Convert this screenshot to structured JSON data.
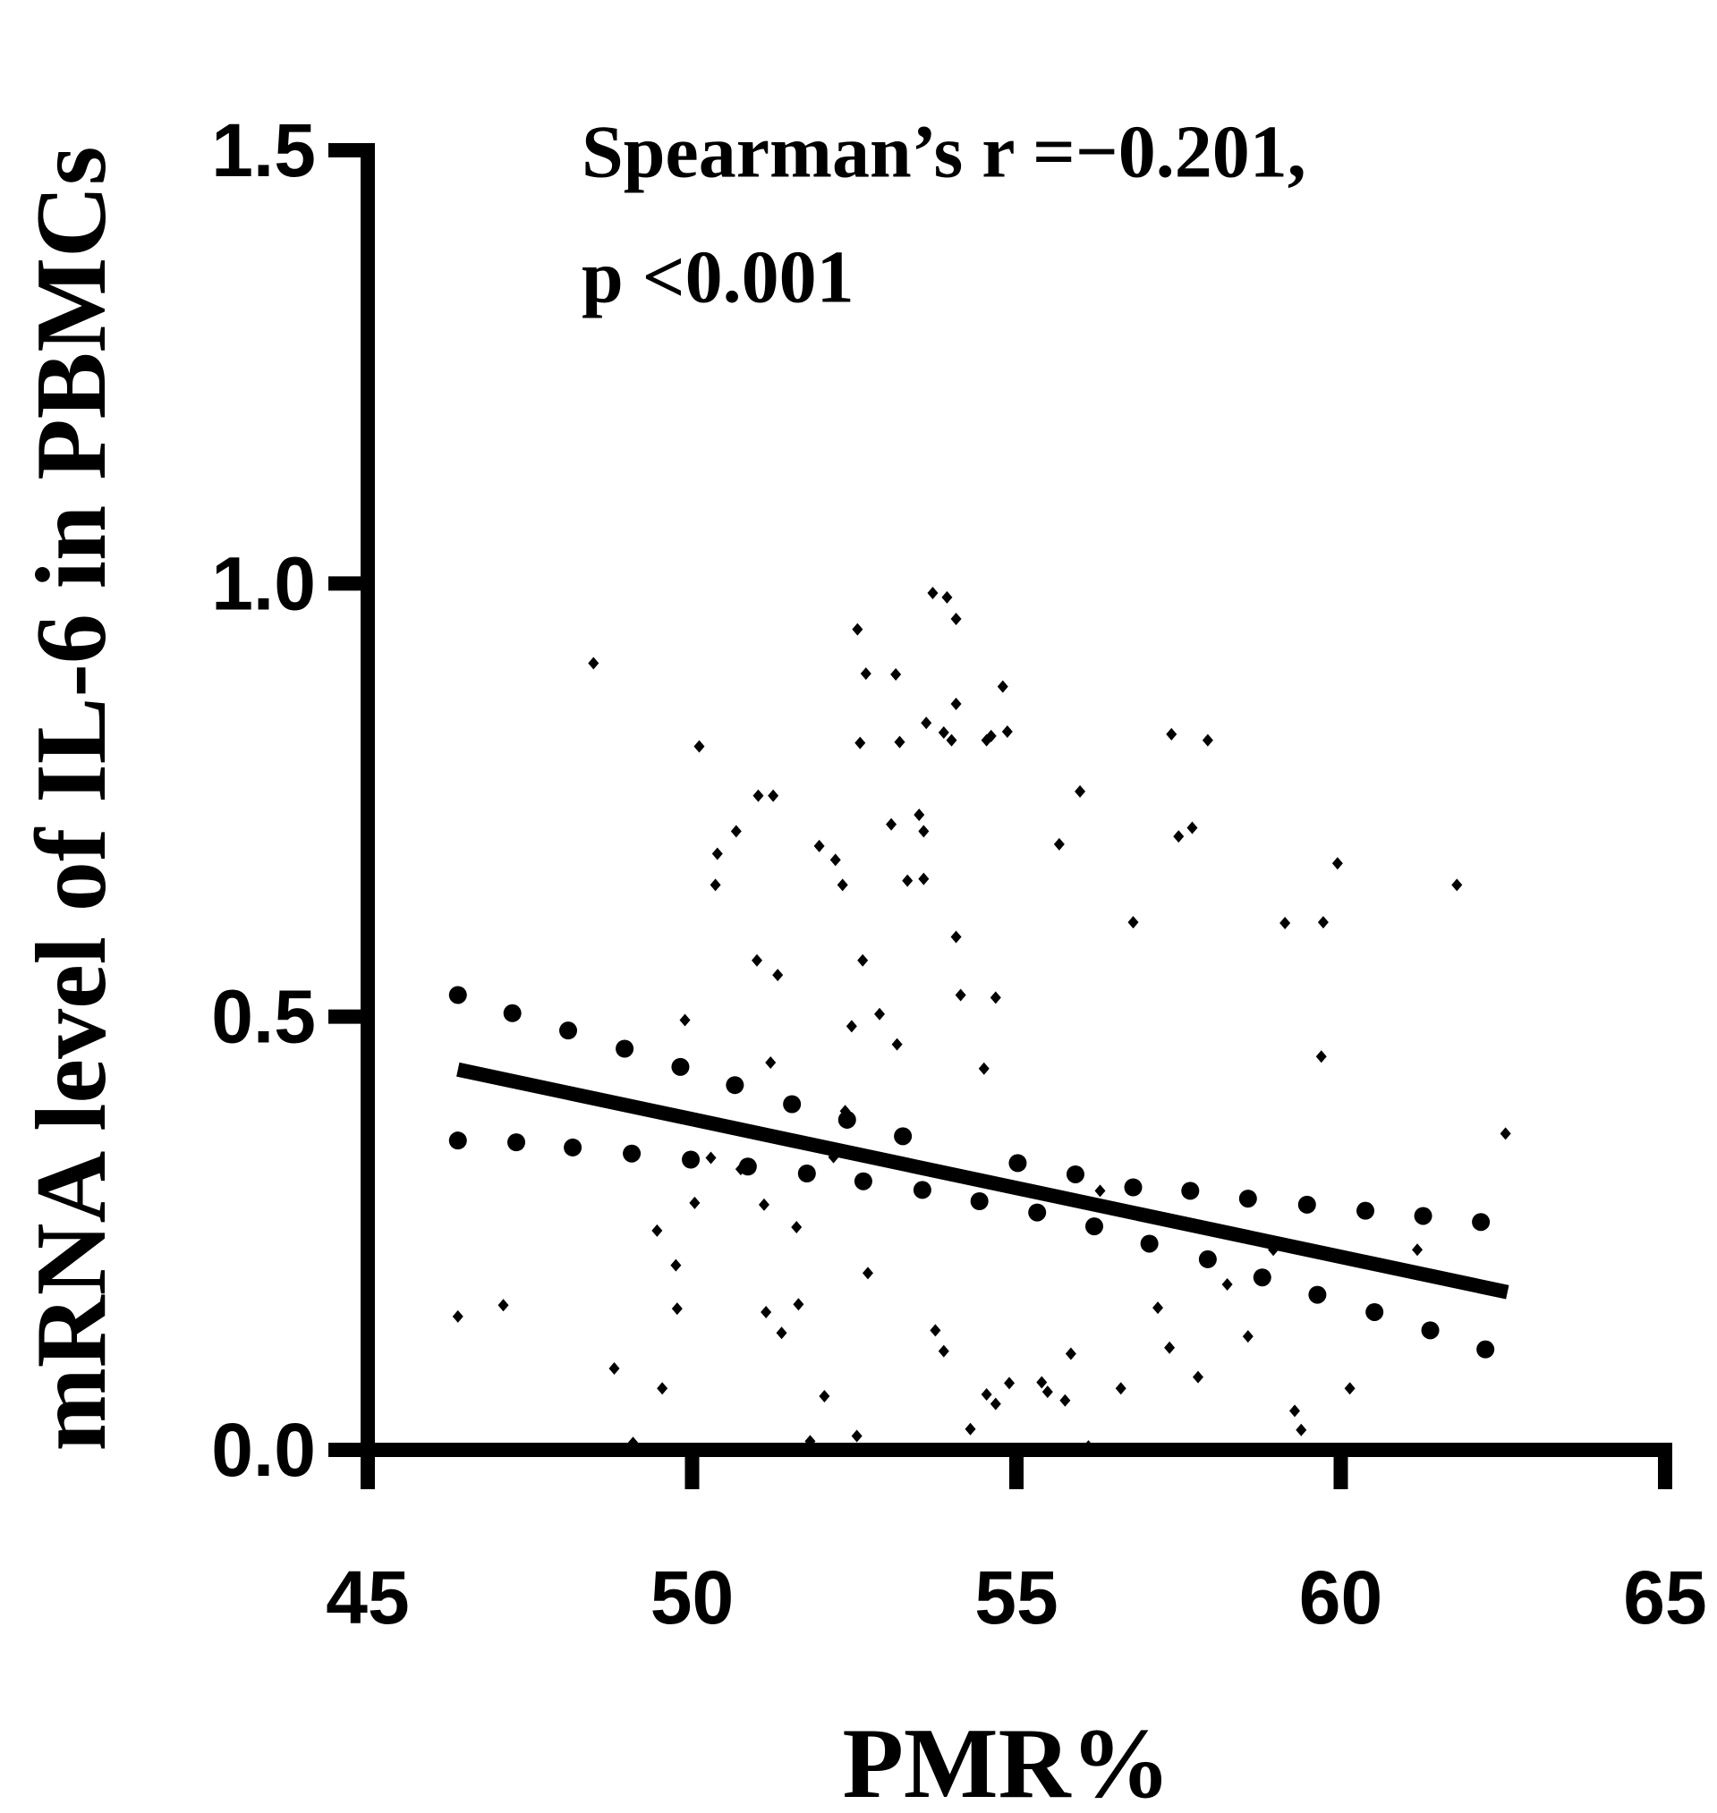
{
  "chart_data": {
    "type": "scatter",
    "x_label": "PMR%",
    "y_label": "mRNA level of IL-6 in PBMCs",
    "annotations": [
      "Spearman’s r =−0.201,",
      "p <0.001"
    ],
    "xlim": [
      45,
      65
    ],
    "xticks": [
      45,
      50,
      55,
      60,
      65
    ],
    "ylim": [
      0,
      1.5
    ],
    "yticks": [
      {
        "value": 0,
        "label": "0.0"
      },
      0.5,
      {
        "value": 1,
        "label": "1.0"
      },
      1.5
    ],
    "series": [
      {
        "marker": "circle",
        "color": "#000000",
        "x": [
          47.23,
          48.09,
          48.96,
          49.82,
          50.66,
          51.54,
          52.39,
          53.25,
          47.29,
          48.16,
          49.07,
          49.98,
          50.86,
          51.77,
          52.64,
          53.55,
          54.43,
          55.32,
          55.02,
          55.91,
          56.8,
          57.68,
          58.57,
          59.48,
          60.38,
          61.27,
          62.16,
          56.2,
          57.05,
          57.95,
          58.79,
          59.64,
          60.52,
          61.38,
          62.23,
          46.39,
          46.39
        ],
        "values": [
          0.504,
          0.484,
          0.463,
          0.442,
          0.421,
          0.399,
          0.381,
          0.362,
          0.355,
          0.349,
          0.342,
          0.335,
          0.327,
          0.319,
          0.31,
          0.3,
          0.287,
          0.274,
          0.331,
          0.318,
          0.303,
          0.299,
          0.29,
          0.283,
          0.276,
          0.27,
          0.263,
          0.258,
          0.238,
          0.22,
          0.199,
          0.179,
          0.159,
          0.138,
          0.116,
          0.357,
          0.525
        ]
      },
      {
        "marker": "diamond",
        "color": "#000000",
        "x": [
          46.39,
          47.09,
          48.48,
          48.8,
          49.09,
          49.54,
          49.77,
          49.75,
          49.46,
          49.89,
          50.11,
          50.39,
          50.68,
          51.02,
          51.25,
          50.36,
          51.0,
          51.32,
          51.21,
          51.14,
          51.38,
          51.64,
          51.96,
          52.21,
          52.32,
          52.55,
          52.68,
          53.14,
          52.59,
          53.2,
          53.07,
          53.57,
          53.5,
          53.32,
          53.57,
          53.88,
          53.61,
          54.0,
          54.07,
          53.71,
          53.93,
          54.07,
          54.54,
          54.79,
          54.86,
          54.61,
          54.07,
          54.14,
          54.68,
          54.5,
          53.75,
          53.88,
          54.29,
          54.54,
          54.68,
          54.89,
          55.48,
          55.75,
          55.66,
          55.98,
          56.8,
          57.39,
          57.95,
          57.71,
          57.5,
          59.14,
          59.73,
          59.95,
          61.79,
          59.7,
          62.54,
          61.18,
          60.14,
          59.39,
          59.29,
          58.57,
          57.8,
          57.36,
          56.61,
          56.11,
          55.84,
          55.39,
          52.63,
          52.46,
          52.89,
          53.16,
          52.36,
          52.71,
          52.18,
          51.82,
          52.04,
          52.54,
          50.75,
          50.29,
          50.04,
          51.11,
          51.61,
          56.29,
          57.18,
          58.96,
          58.25
        ],
        "values": [
          0.154,
          0.167,
          0.908,
          0.094,
          0.008,
          0.071,
          0.163,
          0.213,
          0.253,
          0.496,
          0.812,
          0.688,
          0.714,
          0.755,
          0.755,
          0.652,
          0.565,
          0.548,
          0.447,
          0.159,
          0.135,
          0.168,
          0.697,
          0.681,
          0.652,
          0.947,
          0.896,
          0.895,
          0.816,
          0.817,
          0.722,
          0.714,
          0.733,
          0.657,
          0.659,
          0.828,
          0.839,
          0.819,
          0.861,
          0.989,
          0.984,
          0.959,
          0.819,
          0.881,
          0.829,
          0.824,
          0.592,
          0.525,
          0.522,
          0.44,
          0.138,
          0.114,
          0.024,
          0.064,
          0.053,
          0.077,
          0.067,
          0.057,
          0.699,
          0.76,
          0.609,
          0.826,
          0.819,
          0.718,
          0.708,
          0.608,
          0.609,
          0.677,
          0.652,
          0.454,
          0.365,
          0.231,
          0.071,
          0.023,
          0.045,
          0.131,
          0.084,
          0.118,
          0.071,
          0.004,
          0.111,
          0.078,
          0.565,
          0.489,
          0.503,
          0.468,
          0.391,
          0.204,
          0.338,
          0.01,
          0.062,
          0.016,
          0.324,
          0.337,
          0.285,
          0.283,
          0.257,
          0.299,
          0.164,
          0.231,
          0.191
        ]
      }
    ],
    "trendline": {
      "color": "#000000",
      "x": [
        46.39,
        62.57
      ],
      "values": [
        0.439,
        0.182
      ]
    }
  }
}
